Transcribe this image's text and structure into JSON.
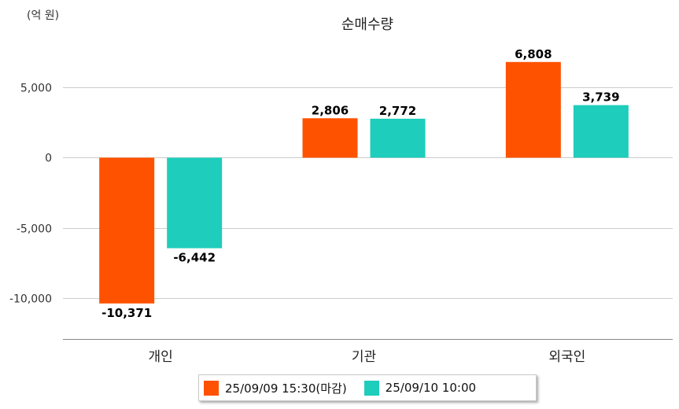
{
  "chart_data": {
    "type": "bar",
    "title": "순매수량",
    "unit_label": "(억 원)",
    "categories": [
      "개인",
      "기관",
      "외국인"
    ],
    "series": [
      {
        "name": "25/09/09 15:30(마감)",
        "values": [
          -10371,
          2806,
          6808
        ],
        "color": "#ff5200"
      },
      {
        "name": "25/09/10 10:00",
        "values": [
          -6442,
          2772,
          3739
        ],
        "color": "#1ecdbb"
      }
    ],
    "value_labels": [
      [
        "-10,371",
        "2,806",
        "6,808"
      ],
      [
        "-6,442",
        "2,772",
        "3,739"
      ]
    ],
    "y_ticks": [
      5000,
      0,
      -5000,
      -10000
    ],
    "y_tick_labels": [
      "5,000",
      "0",
      "-5,000",
      "-10,000"
    ],
    "ylim": [
      -12900,
      8700
    ],
    "grid": true,
    "legend_position": "bottom"
  }
}
